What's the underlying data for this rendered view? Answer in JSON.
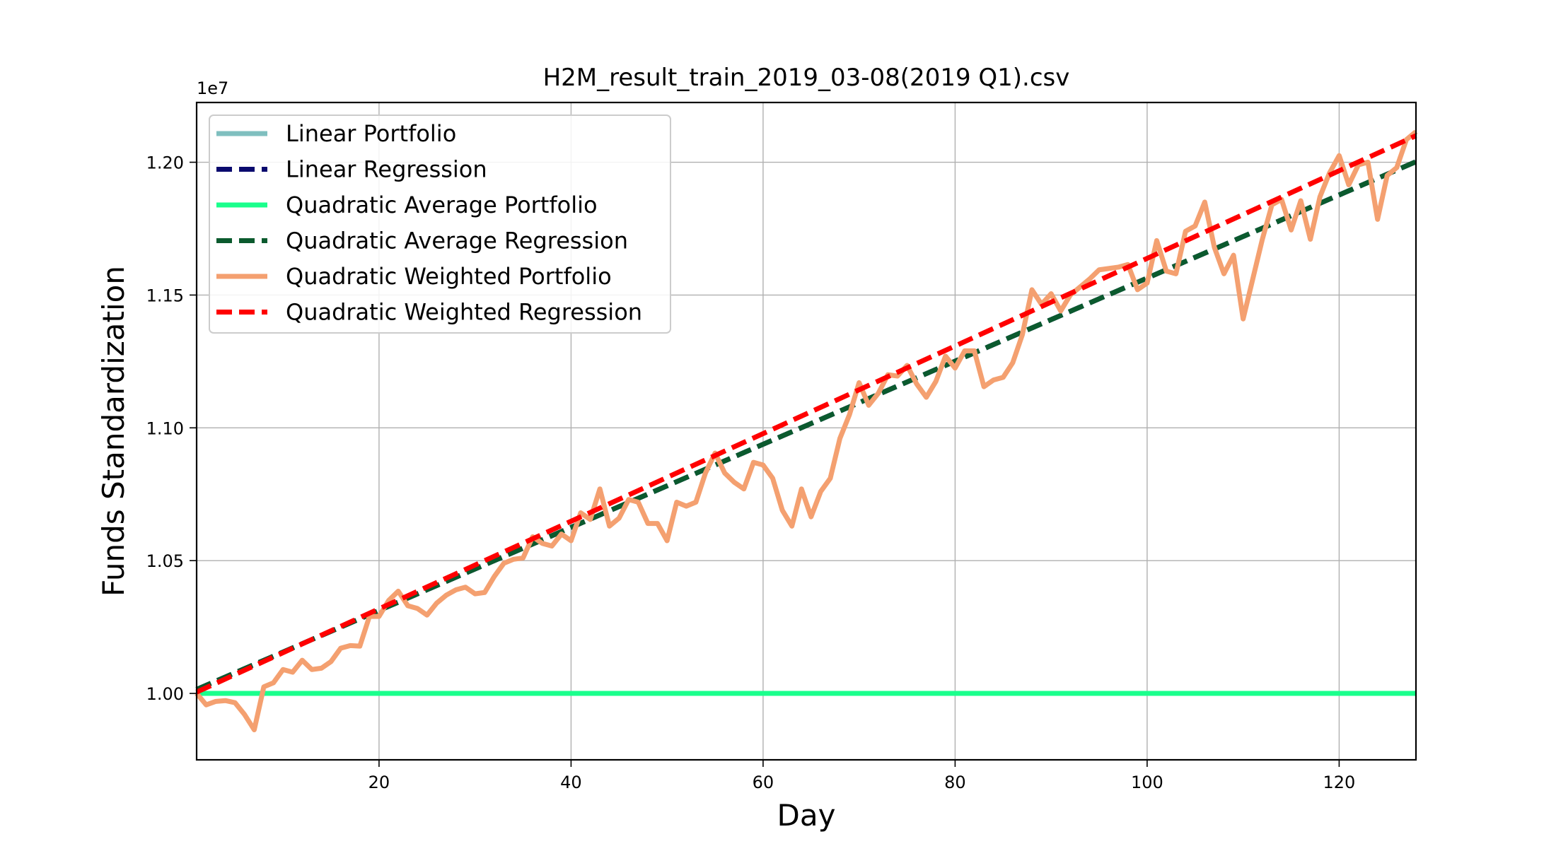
{
  "chart_data": {
    "type": "line",
    "title": "H2M_result_train_2019_03-08(2019 Q1).csv",
    "xlabel": "Day",
    "ylabel": "Funds Standardization",
    "y_offset_label": "1e7",
    "xlim": [
      1,
      128
    ],
    "ylim": [
      0.975,
      1.2225
    ],
    "x_ticks": [
      20,
      40,
      60,
      80,
      100,
      120
    ],
    "x_tick_labels": [
      "20",
      "40",
      "60",
      "80",
      "100",
      "120"
    ],
    "y_ticks": [
      1.0,
      1.05,
      1.1,
      1.15,
      1.2
    ],
    "y_tick_labels": [
      "1.00",
      "1.05",
      "1.10",
      "1.15",
      "1.20"
    ],
    "grid": true,
    "legend_position": "top-left",
    "series": [
      {
        "name": "Linear Portfolio",
        "color": "#7fbfbf",
        "style": "solid",
        "line": [
          [
            1,
            1.0,
            128,
            1.0
          ]
        ]
      },
      {
        "name": "Linear Regression",
        "color": "#0a0a6e",
        "style": "dashed",
        "line": [
          [
            1,
            1.0015,
            128,
            1.2002
          ]
        ]
      },
      {
        "name": "Quadratic Average Portfolio",
        "color": "#1aff8c",
        "style": "solid",
        "line": [
          [
            1,
            1.0,
            128,
            1.0
          ]
        ]
      },
      {
        "name": "Quadratic Average Regression",
        "color": "#0b5a2e",
        "style": "dashed",
        "line": [
          [
            1,
            1.0015,
            128,
            1.2002
          ]
        ]
      },
      {
        "name": "Quadratic Weighted Portfolio",
        "color": "#f4a070",
        "style": "solid",
        "points": [
          [
            1,
            1.0
          ],
          [
            2,
            0.9957
          ],
          [
            3,
            0.997
          ],
          [
            4,
            0.9973
          ],
          [
            5,
            0.9965
          ],
          [
            6,
            0.992
          ],
          [
            7,
            0.9863
          ],
          [
            8,
            1.0025
          ],
          [
            9,
            1.004
          ],
          [
            10,
            1.009
          ],
          [
            11,
            1.008
          ],
          [
            12,
            1.0125
          ],
          [
            13,
            1.009
          ],
          [
            14,
            1.0095
          ],
          [
            15,
            1.012
          ],
          [
            16,
            1.017
          ],
          [
            17,
            1.018
          ],
          [
            18,
            1.0178
          ],
          [
            19,
            1.029
          ],
          [
            20,
            1.029
          ],
          [
            21,
            1.035
          ],
          [
            22,
            1.0385
          ],
          [
            23,
            1.033
          ],
          [
            24,
            1.032
          ],
          [
            25,
            1.0295
          ],
          [
            26,
            1.034
          ],
          [
            27,
            1.037
          ],
          [
            28,
            1.039
          ],
          [
            29,
            1.04
          ],
          [
            30,
            1.0375
          ],
          [
            31,
            1.038
          ],
          [
            32,
            1.044
          ],
          [
            33,
            1.049
          ],
          [
            34,
            1.0505
          ],
          [
            35,
            1.051
          ],
          [
            36,
            1.059
          ],
          [
            37,
            1.0565
          ],
          [
            38,
            1.0555
          ],
          [
            39,
            1.06
          ],
          [
            40,
            1.0575
          ],
          [
            41,
            1.068
          ],
          [
            42,
            1.0655
          ],
          [
            43,
            1.077
          ],
          [
            44,
            1.063
          ],
          [
            45,
            1.066
          ],
          [
            46,
            1.073
          ],
          [
            47,
            1.072
          ],
          [
            48,
            1.064
          ],
          [
            49,
            1.064
          ],
          [
            50,
            1.0575
          ],
          [
            51,
            1.072
          ],
          [
            52,
            1.0705
          ],
          [
            53,
            1.072
          ],
          [
            54,
            1.083
          ],
          [
            55,
            1.0905
          ],
          [
            56,
            1.083
          ],
          [
            57,
            1.0795
          ],
          [
            58,
            1.077
          ],
          [
            59,
            1.087
          ],
          [
            60,
            1.086
          ],
          [
            61,
            1.081
          ],
          [
            62,
            1.069
          ],
          [
            63,
            1.063
          ],
          [
            64,
            1.077
          ],
          [
            65,
            1.0665
          ],
          [
            66,
            1.076
          ],
          [
            67,
            1.081
          ],
          [
            68,
            1.096
          ],
          [
            69,
            1.105
          ],
          [
            70,
            1.117
          ],
          [
            71,
            1.1085
          ],
          [
            72,
            1.113
          ],
          [
            73,
            1.12
          ],
          [
            74,
            1.1195
          ],
          [
            75,
            1.1235
          ],
          [
            76,
            1.1165
          ],
          [
            77,
            1.1115
          ],
          [
            78,
            1.1175
          ],
          [
            79,
            1.127
          ],
          [
            80,
            1.1225
          ],
          [
            81,
            1.129
          ],
          [
            82,
            1.129
          ],
          [
            83,
            1.1155
          ],
          [
            84,
            1.118
          ],
          [
            85,
            1.119
          ],
          [
            86,
            1.1245
          ],
          [
            87,
            1.135
          ],
          [
            88,
            1.152
          ],
          [
            89,
            1.1465
          ],
          [
            90,
            1.1505
          ],
          [
            91,
            1.144
          ],
          [
            92,
            1.15
          ],
          [
            93,
            1.153
          ],
          [
            94,
            1.156
          ],
          [
            95,
            1.1595
          ],
          [
            96,
            1.16
          ],
          [
            97,
            1.1605
          ],
          [
            98,
            1.1615
          ],
          [
            99,
            1.152
          ],
          [
            100,
            1.1545
          ],
          [
            101,
            1.1705
          ],
          [
            102,
            1.159
          ],
          [
            103,
            1.158
          ],
          [
            104,
            1.174
          ],
          [
            105,
            1.176
          ],
          [
            106,
            1.185
          ],
          [
            107,
            1.168
          ],
          [
            108,
            1.158
          ],
          [
            109,
            1.165
          ],
          [
            110,
            1.141
          ],
          [
            111,
            1.156
          ],
          [
            112,
            1.171
          ],
          [
            113,
            1.184
          ],
          [
            114,
            1.186
          ],
          [
            115,
            1.1745
          ],
          [
            116,
            1.1855
          ],
          [
            117,
            1.171
          ],
          [
            118,
            1.187
          ],
          [
            119,
            1.196
          ],
          [
            120,
            1.2025
          ],
          [
            121,
            1.1915
          ],
          [
            122,
            1.199
          ],
          [
            123,
            1.2
          ],
          [
            124,
            1.1785
          ],
          [
            125,
            1.195
          ],
          [
            126,
            1.198
          ],
          [
            127,
            1.2085
          ],
          [
            128,
            1.2115
          ]
        ]
      },
      {
        "name": "Quadratic Weighted Regression",
        "color": "#ff0000",
        "style": "dashed",
        "line": [
          [
            1,
            1.0005,
            128,
            1.21
          ]
        ]
      }
    ]
  }
}
